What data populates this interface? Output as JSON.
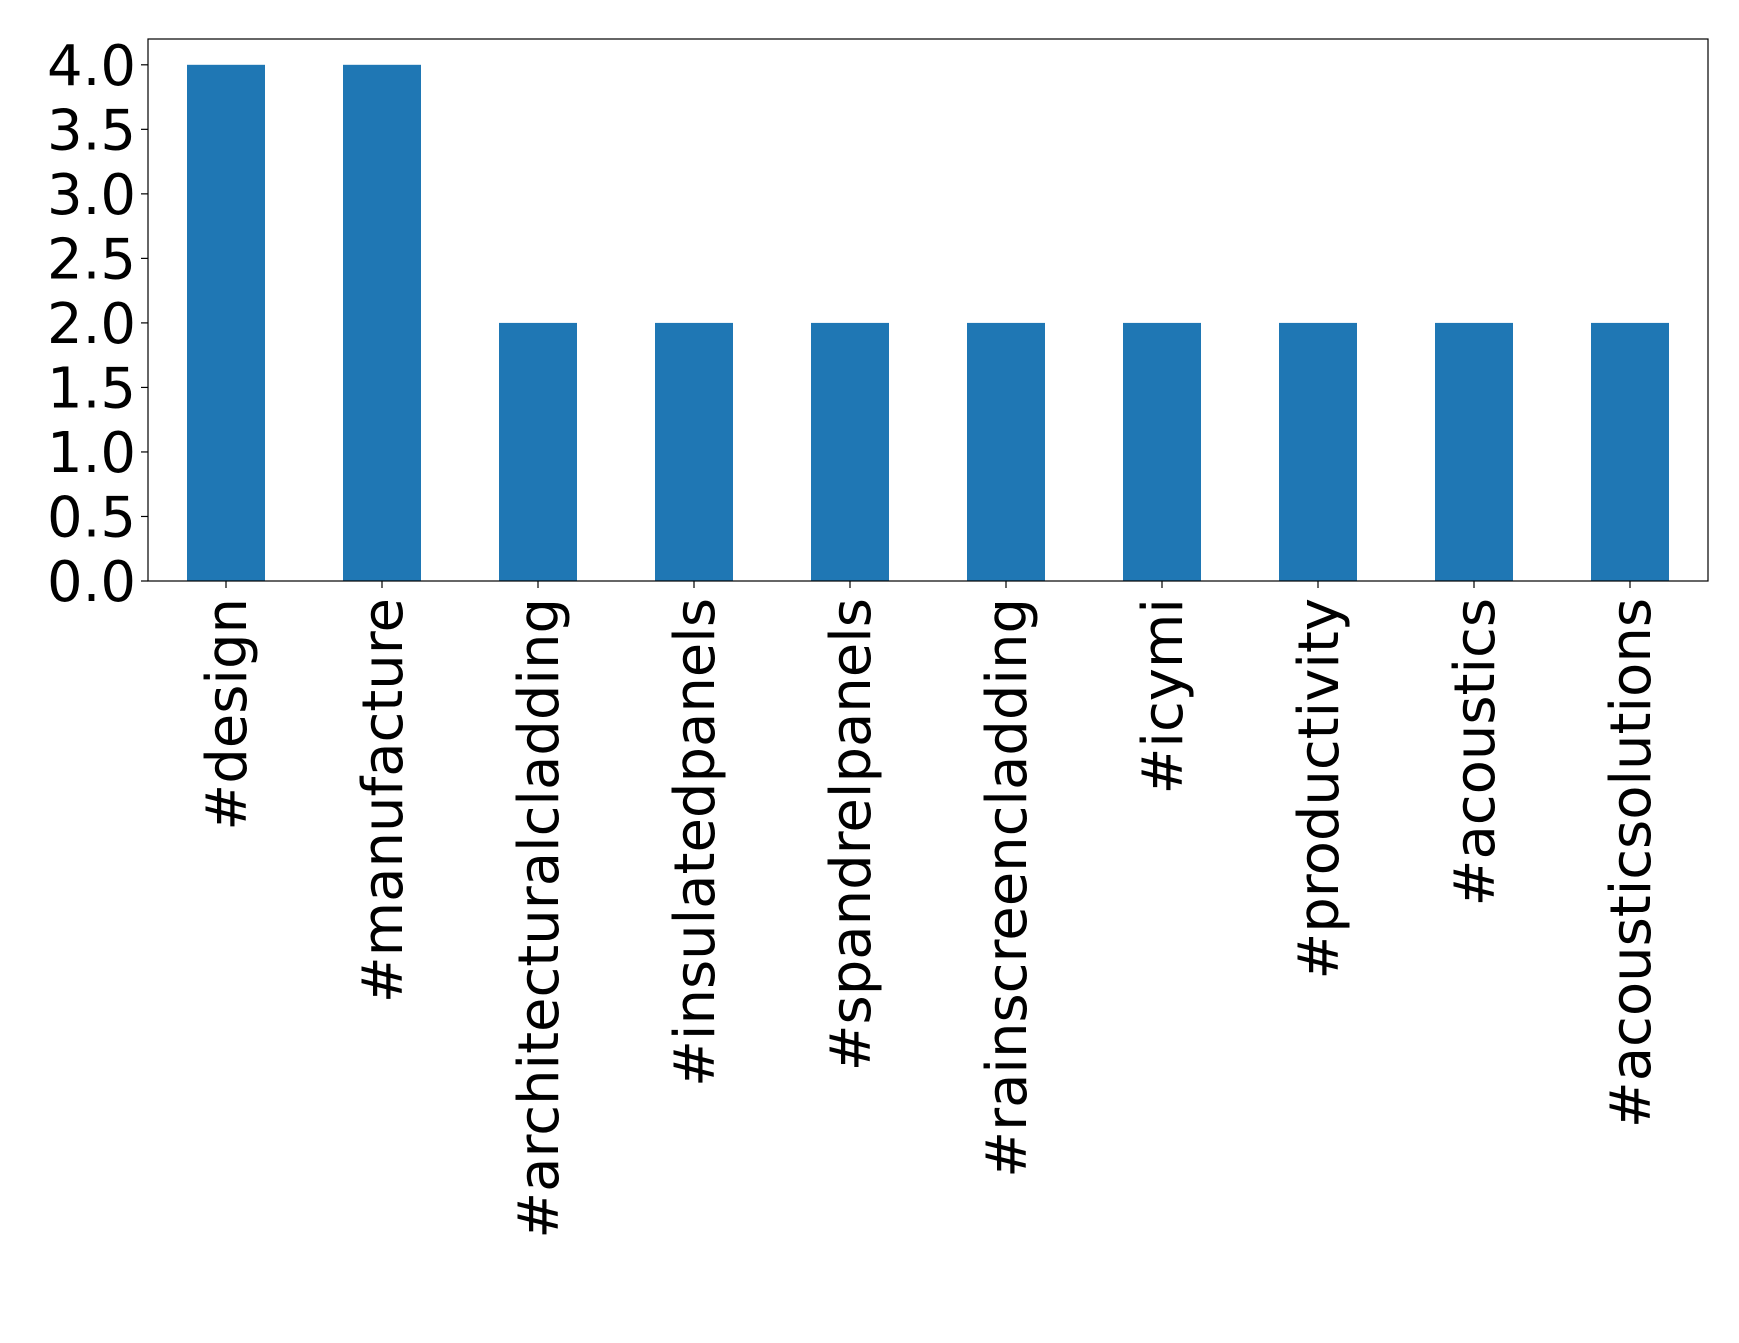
{
  "chart_data": {
    "type": "bar",
    "categories": [
      "#design",
      "#manufacture",
      "#architecturalcladding",
      "#insulatedpanels",
      "#spandrelpanels",
      "#rainscreencladding",
      "#icymi",
      "#productivity",
      "#acoustics",
      "#acousticsolutions"
    ],
    "values": [
      4,
      4,
      2,
      2,
      2,
      2,
      2,
      2,
      2,
      2
    ],
    "color": "#1f77b4",
    "ylim": [
      0,
      4.2
    ],
    "yticks": [
      {
        "value": 0,
        "label": "0.0"
      },
      {
        "value": 0.5,
        "label": "0.5"
      },
      {
        "value": 1,
        "label": "1.0"
      },
      {
        "value": 1.5,
        "label": "1.5"
      },
      {
        "value": 2,
        "label": "2.0"
      },
      {
        "value": 2.5,
        "label": "2.5"
      },
      {
        "value": 3,
        "label": "3.0"
      },
      {
        "value": 3.5,
        "label": "3.5"
      },
      {
        "value": 4,
        "label": "4.0"
      }
    ],
    "grid": false
  }
}
